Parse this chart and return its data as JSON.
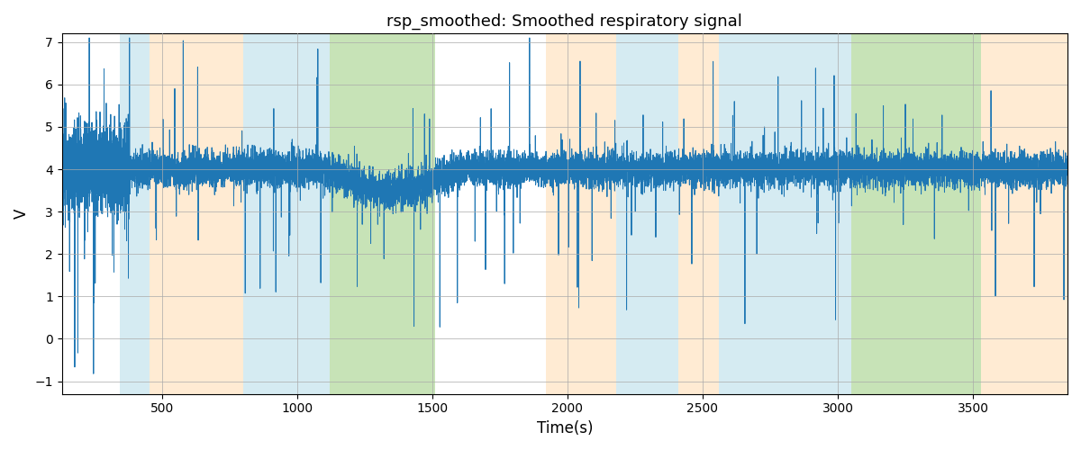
{
  "title": "rsp_smoothed: Smoothed respiratory signal",
  "xlabel": "Time(s)",
  "ylabel": "V",
  "xlim": [
    130,
    3850
  ],
  "ylim": [
    -1.3,
    7.2
  ],
  "yticks": [
    -1,
    0,
    1,
    2,
    3,
    4,
    5,
    6,
    7
  ],
  "xticks": [
    500,
    1000,
    1500,
    2000,
    2500,
    3000,
    3500
  ],
  "line_color": "#1f77b4",
  "line_width": 0.7,
  "background_color": "#ffffff",
  "grid_color": "#aaaaaa",
  "colored_bands": [
    {
      "start": 345,
      "end": 455,
      "color": "#add8e6",
      "alpha": 0.5
    },
    {
      "start": 455,
      "end": 800,
      "color": "#ffd8a8",
      "alpha": 0.5
    },
    {
      "start": 800,
      "end": 1120,
      "color": "#add8e6",
      "alpha": 0.5
    },
    {
      "start": 1120,
      "end": 1510,
      "color": "#90c870",
      "alpha": 0.5
    },
    {
      "start": 1920,
      "end": 2180,
      "color": "#ffd8a8",
      "alpha": 0.5
    },
    {
      "start": 2180,
      "end": 2410,
      "color": "#add8e6",
      "alpha": 0.5
    },
    {
      "start": 2410,
      "end": 2560,
      "color": "#ffd8a8",
      "alpha": 0.5
    },
    {
      "start": 2560,
      "end": 3050,
      "color": "#add8e6",
      "alpha": 0.5
    },
    {
      "start": 3050,
      "end": 3530,
      "color": "#90c870",
      "alpha": 0.5
    },
    {
      "start": 3530,
      "end": 3850,
      "color": "#ffd8a8",
      "alpha": 0.5
    }
  ],
  "time_start": 130,
  "time_end": 3850,
  "seed": 99
}
